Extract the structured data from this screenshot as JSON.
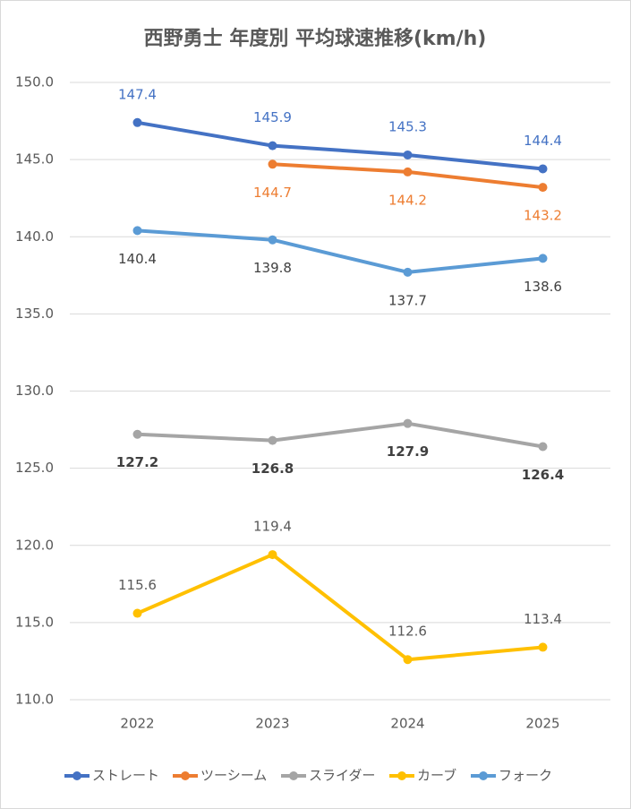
{
  "chart_data": {
    "type": "line",
    "title": "西野勇士 年度別 平均球速推移(km/h)",
    "categories": [
      "2022",
      "2023",
      "2024",
      "2025"
    ],
    "series": [
      {
        "name": "ストレート",
        "color": "#4472c4",
        "label_color": "#4472c4",
        "label_position": "above",
        "values": [
          147.4,
          145.9,
          145.3,
          144.4
        ]
      },
      {
        "name": "ツーシーム",
        "color": "#ed7d31",
        "label_color": "#ed7d31",
        "label_position": "below",
        "values": [
          null,
          144.7,
          144.2,
          143.2
        ]
      },
      {
        "name": "スライダー",
        "color": "#a5a5a5",
        "label_color": "#404040",
        "label_position": "below",
        "values": [
          127.2,
          126.8,
          127.9,
          126.4
        ]
      },
      {
        "name": "カーブ",
        "color": "#ffc000",
        "label_color": "#595959",
        "label_position": "above",
        "values": [
          115.6,
          119.4,
          112.6,
          113.4
        ]
      },
      {
        "name": "フォーク",
        "color": "#5b9bd5",
        "label_color": "#404040",
        "label_position": "below",
        "values": [
          140.4,
          139.8,
          137.7,
          138.6
        ]
      }
    ],
    "ylim": [
      110,
      150
    ],
    "yticks": [
      {
        "value": 110,
        "label": "110.0"
      },
      {
        "value": 115,
        "label": "115.0"
      },
      {
        "value": 120,
        "label": "120.0"
      },
      {
        "value": 125,
        "label": "125.0"
      },
      {
        "value": 130,
        "label": "130.0"
      },
      {
        "value": 135,
        "label": "135.0"
      },
      {
        "value": 140,
        "label": "140.0"
      },
      {
        "value": 145,
        "label": "145.0"
      },
      {
        "value": 150,
        "label": "150.0"
      }
    ],
    "grid": true,
    "legend": "bottom"
  }
}
